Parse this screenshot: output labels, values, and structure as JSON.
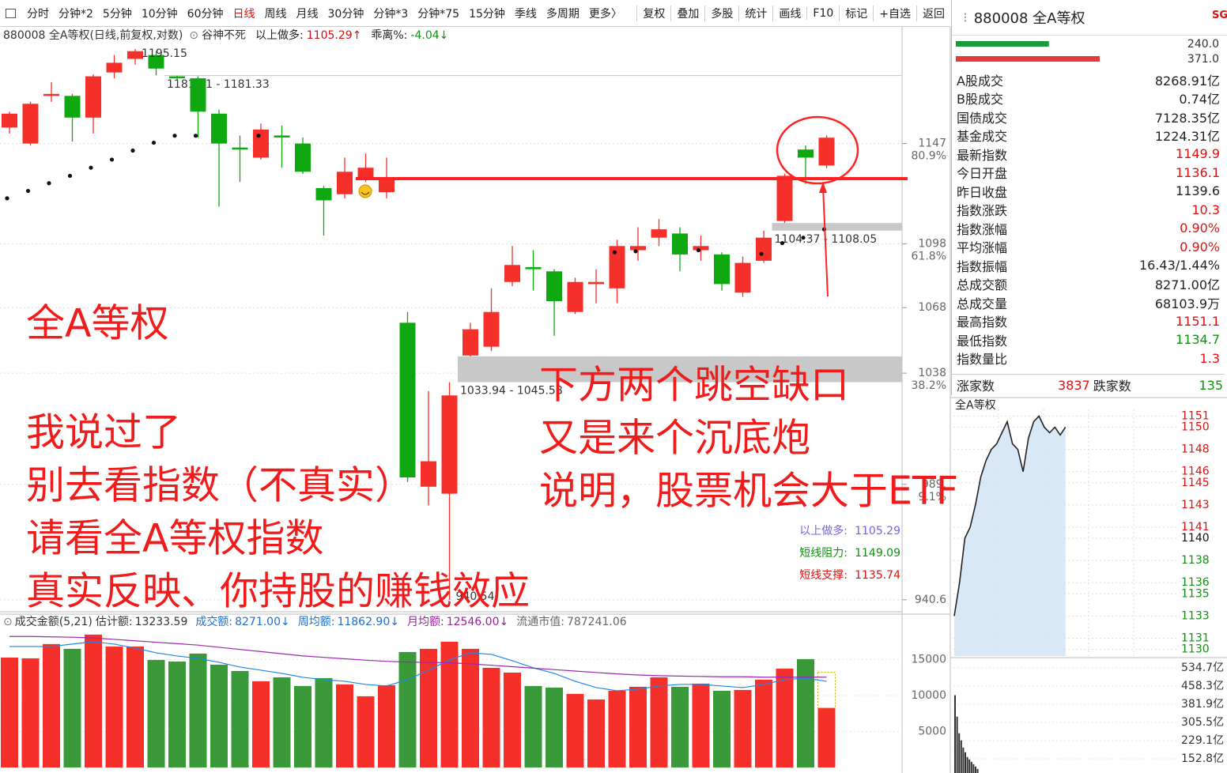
{
  "toolbar": {
    "periods": [
      "分时",
      "分钟*2",
      "5分钟",
      "10分钟",
      "60分钟",
      "日线",
      "周线",
      "月线",
      "30分钟",
      "分钟*3",
      "分钟*75",
      "15分钟",
      "季线",
      "多周期",
      "更多〉"
    ],
    "active_index": 5,
    "tools": [
      "复权",
      "叠加",
      "多股",
      "统计",
      "画线",
      "F10",
      "标记",
      "+自选",
      "返回"
    ]
  },
  "chart_data": [
    {
      "type": "candlestick",
      "title": "880008 全A等权(日线,前复权,对数)",
      "indicator": "谷神不死",
      "header_items": [
        {
          "label": "以上做多:",
          "value": "1105.29↑",
          "color": "#d01010"
        },
        {
          "label": "乖离%:",
          "value": "-4.04↓",
          "color": "#109010"
        }
      ],
      "candles": [
        {
          "open": 1155,
          "high": 1163,
          "low": 1152,
          "close": 1162
        },
        {
          "open": 1147,
          "high": 1168,
          "low": 1146,
          "close": 1167
        },
        {
          "open": 1171,
          "high": 1178,
          "low": 1168,
          "close": 1172
        },
        {
          "open": 1171,
          "high": 1172,
          "low": 1148,
          "close": 1160
        },
        {
          "open": 1160,
          "high": 1182,
          "low": 1152,
          "close": 1181
        },
        {
          "open": 1183,
          "high": 1192,
          "low": 1180,
          "close": 1188
        },
        {
          "open": 1190,
          "high": 1195.15,
          "low": 1187,
          "close": 1194
        },
        {
          "open": 1192,
          "high": 1194,
          "low": 1181.61,
          "close": 1185
        },
        {
          "open": 1181,
          "high": 1181.33,
          "low": 1179,
          "close": 1180
        },
        {
          "open": 1180,
          "high": 1181,
          "low": 1150,
          "close": 1163
        },
        {
          "open": 1162,
          "high": 1164,
          "low": 1116,
          "close": 1147
        },
        {
          "open": 1145,
          "high": 1151,
          "low": 1128,
          "close": 1144
        },
        {
          "open": 1140,
          "high": 1157,
          "low": 1139,
          "close": 1154
        },
        {
          "open": 1151,
          "high": 1156,
          "low": 1135,
          "close": 1150
        },
        {
          "open": 1147,
          "high": 1150,
          "low": 1132,
          "close": 1133
        },
        {
          "open": 1125,
          "high": 1126,
          "low": 1102,
          "close": 1119
        },
        {
          "open": 1122,
          "high": 1140,
          "low": 1120,
          "close": 1133
        },
        {
          "open": 1130,
          "high": 1142,
          "low": 1128,
          "close": 1135
        },
        {
          "open": 1123,
          "high": 1140,
          "low": 1120,
          "close": 1129
        },
        {
          "open": 1061,
          "high": 1066,
          "low": 990,
          "close": 992
        },
        {
          "open": 988,
          "high": 1030,
          "low": 980,
          "close": 999
        },
        {
          "open": 985,
          "high": 1033.94,
          "low": 940.54,
          "close": 1028
        },
        {
          "open": 1046,
          "high": 1061,
          "low": 1045.58,
          "close": 1058
        },
        {
          "open": 1050,
          "high": 1077,
          "low": 1048,
          "close": 1066
        },
        {
          "open": 1080,
          "high": 1097,
          "low": 1078,
          "close": 1088
        },
        {
          "open": 1087,
          "high": 1095,
          "low": 1076,
          "close": 1086
        },
        {
          "open": 1085,
          "high": 1086,
          "low": 1055,
          "close": 1071
        },
        {
          "open": 1066,
          "high": 1082,
          "low": 1065,
          "close": 1080
        },
        {
          "open": 1079,
          "high": 1086,
          "low": 1070,
          "close": 1080
        },
        {
          "open": 1077,
          "high": 1100,
          "low": 1070,
          "close": 1097
        },
        {
          "open": 1095,
          "high": 1106,
          "low": 1090,
          "close": 1097
        },
        {
          "open": 1101,
          "high": 1110,
          "low": 1097,
          "close": 1105
        },
        {
          "open": 1103,
          "high": 1106,
          "low": 1085,
          "close": 1093
        },
        {
          "open": 1095,
          "high": 1102,
          "low": 1090,
          "close": 1097
        },
        {
          "open": 1093,
          "high": 1094,
          "low": 1076,
          "close": 1079
        },
        {
          "open": 1075,
          "high": 1092,
          "low": 1073,
          "close": 1089
        },
        {
          "open": 1090,
          "high": 1104.37,
          "low": 1089,
          "close": 1101
        },
        {
          "open": 1109,
          "high": 1132,
          "low": 1108.05,
          "close": 1131
        },
        {
          "open": 1144,
          "high": 1146,
          "low": 1127,
          "close": 1140
        },
        {
          "open": 1136.1,
          "high": 1151.1,
          "low": 1134.7,
          "close": 1149.9
        }
      ],
      "up_color": "#f5302a",
      "down_color": "#10a810",
      "sar": [
        1120,
        1123.6,
        1127.4,
        1131,
        1135,
        1139,
        1143.5,
        1147.4,
        1150.9,
        1150.9,
        null,
        null,
        1150.9,
        null,
        null,
        null,
        null,
        null,
        null,
        null,
        null,
        null,
        null,
        null,
        null,
        null,
        null,
        null,
        null,
        1094,
        1094.5,
        null,
        null,
        1095,
        null,
        null,
        1093.3,
        1098.4,
        1101,
        1105
      ],
      "log": true,
      "ylim": [
        937,
        1198
      ],
      "yticks": [
        1147,
        1098,
        1068,
        1038,
        {
          "value": 989,
          "label": "989."
        },
        940.6
      ],
      "fib_levels": [
        {
          "value": 1147,
          "label": "80.9%"
        },
        {
          "value": 1098,
          "label": "61.8%"
        },
        {
          "value": 1038,
          "label": "38.2%"
        },
        {
          "value": 989,
          "label": "9.1%"
        }
      ],
      "gaps": [
        {
          "from": 1181.61,
          "to": 1181.33,
          "label": "1181.61 - 1181.33"
        },
        {
          "from": 1104.37,
          "to": 1108.05,
          "label": "1104.37 - 1108.05"
        },
        {
          "from": 1033.94,
          "to": 1045.58,
          "label": "1033.94 - 1045.58"
        }
      ],
      "extremes": [
        1195.15,
        940.54
      ],
      "levels": [
        {
          "label": "以上做多:",
          "value": 1105.29,
          "color": "#7a63e0"
        },
        {
          "label": "短线阻力:",
          "value": 1149.09,
          "color": "#109010"
        },
        {
          "label": "短线支撑:",
          "value": 1135.74,
          "color": "#e01010"
        }
      ]
    },
    {
      "type": "bar",
      "title": "成交金额(5,21)",
      "estimate_label": "估计额:",
      "estimate": 13233.59,
      "header_items": [
        {
          "label": "成交额:",
          "value": "8271.00↓",
          "color": "#1e6fd0"
        },
        {
          "label": "周均额:",
          "value": "11862.90↓",
          "color": "#1e6fd0"
        },
        {
          "label": "月均额:",
          "value": "12546.00↓",
          "color": "#9c1fa0"
        },
        {
          "label": "流通市值:",
          "value": "787241.06",
          "color": "#666666"
        }
      ],
      "values": [
        15275,
        15165,
        17143,
        16484,
        18462,
        16813,
        16813,
        14945,
        14725,
        15824,
        14286,
        13407,
        11978,
        12527,
        11319,
        12418,
        11538,
        9890,
        11429,
        16044,
        16484,
        17473,
        16484,
        13846,
        13187,
        11319,
        11099,
        10220,
        9451,
        10659,
        11209,
        12527,
        11209,
        11648,
        10659,
        10769,
        12198,
        13736,
        15055,
        8271
      ],
      "ma5": [
        16813,
        16813,
        16813,
        17143,
        17473,
        17143,
        16593,
        15934,
        15495,
        15165,
        14615,
        13956,
        13516,
        13077,
        12527,
        12198,
        11978,
        11538,
        11319,
        12198,
        13516,
        14945,
        15934,
        15714,
        14835,
        13846,
        13077,
        11978,
        11099,
        10659,
        10879,
        11319,
        11538,
        11538,
        11319,
        11099,
        11538,
        12198,
        12418,
        11978
      ],
      "ma21": [
        18200,
        18200,
        18150,
        18100,
        18000,
        17800,
        17600,
        17400,
        17200,
        17000,
        16700,
        16400,
        16100,
        15800,
        15500,
        15300,
        15100,
        14900,
        14750,
        14650,
        14600,
        14550,
        14400,
        14200,
        14000,
        13800,
        13600,
        13400,
        13200,
        13000,
        12850,
        12750,
        12700,
        12650,
        12600,
        12600,
        12550,
        12550,
        12550,
        12550
      ],
      "ma_colors": [
        "#1e88e5",
        "#9c27b0"
      ],
      "ylim": [
        0,
        19000
      ],
      "yticks": [
        15000,
        10000,
        5000
      ]
    },
    {
      "type": "line",
      "title": "全A等权",
      "values": [
        1133,
        1136,
        1140,
        1141,
        1143,
        1145.5,
        1147,
        1148,
        1148.5,
        1149.5,
        1150.5,
        1148.5,
        1148,
        1146,
        1149,
        1150.5,
        1151,
        1150,
        1149.5,
        1150,
        1149.3,
        1150
      ],
      "ylim": [
        1129.4,
        1151.6
      ],
      "base": 1140,
      "yticks": [
        1151,
        1150,
        1148,
        1146,
        1145,
        1143,
        1141,
        1140,
        1138,
        1136,
        1135,
        1133,
        1131,
        1130
      ],
      "color": "#222222",
      "fill": "#cfe2f5"
    },
    {
      "type": "bar",
      "values": [
        420,
        330,
        260,
        230,
        200,
        180,
        160,
        150,
        140,
        130,
        120,
        110
      ],
      "ylim": [
        93,
        568
      ],
      "color": "#333333",
      "yticks": [
        {
          "value": 534.7,
          "label": "534.7亿"
        },
        {
          "value": 458.3,
          "label": "458.3亿"
        },
        {
          "value": 381.9,
          "label": "381.9亿"
        },
        {
          "value": 305.5,
          "label": "305.5亿"
        },
        {
          "value": 229.1,
          "label": "229.1亿"
        },
        {
          "value": 152.8,
          "label": "152.8亿"
        }
      ]
    }
  ],
  "side_panel": {
    "title": "880008 全A等权",
    "badge": "SG",
    "bars": {
      "values": [
        240,
        371
      ],
      "value_labels": [
        "240.0",
        "371.0"
      ],
      "colors": [
        "#1a9a3a",
        "#e83a3a"
      ]
    },
    "rows": [
      {
        "label": "A股成交",
        "value": "8268.91亿",
        "color": "#222222"
      },
      {
        "label": "B股成交",
        "value": "0.74亿",
        "color": "#222222"
      },
      {
        "label": "国债成交",
        "value": "7128.35亿",
        "color": "#222222"
      },
      {
        "label": "基金成交",
        "value": "1224.31亿",
        "color": "#222222"
      },
      {
        "label": "最新指数",
        "value": "1149.9",
        "color": "#e01010"
      },
      {
        "label": "今日开盘",
        "value": "1136.1",
        "color": "#e01010"
      },
      {
        "label": "昨日收盘",
        "value": "1139.6",
        "color": "#222222"
      },
      {
        "label": "指数涨跌",
        "value": "10.3",
        "color": "#e01010"
      },
      {
        "label": "指数涨幅",
        "value": "0.90%",
        "color": "#e01010"
      },
      {
        "label": "平均涨幅",
        "value": "0.90%",
        "color": "#e01010"
      },
      {
        "label": "指数振幅",
        "value": "16.43/1.44%",
        "color": "#222222"
      },
      {
        "label": "总成交额",
        "value": "8271.00亿",
        "color": "#222222"
      },
      {
        "label": "总成交量",
        "value": "68103.9万",
        "color": "#222222"
      },
      {
        "label": "最高指数",
        "value": "1151.1",
        "color": "#e01010"
      },
      {
        "label": "最低指数",
        "value": "1134.7",
        "color": "#109010"
      },
      {
        "label": "指数量比",
        "value": "1.3",
        "color": "#e01010"
      }
    ],
    "breadth": {
      "up_label": "涨家数",
      "up": "3837",
      "down_label": "跌家数",
      "down": "135"
    }
  },
  "annotations": {
    "title": "全A等权",
    "left": [
      "我说过了",
      "别去看指数（不真实）",
      "请看全A等权指数",
      "真实反映、你持股的赚钱效应"
    ],
    "right": [
      "下方两个跳空缺口",
      "又是来个沉底炮",
      "说明，股票机会大于ETF"
    ]
  }
}
